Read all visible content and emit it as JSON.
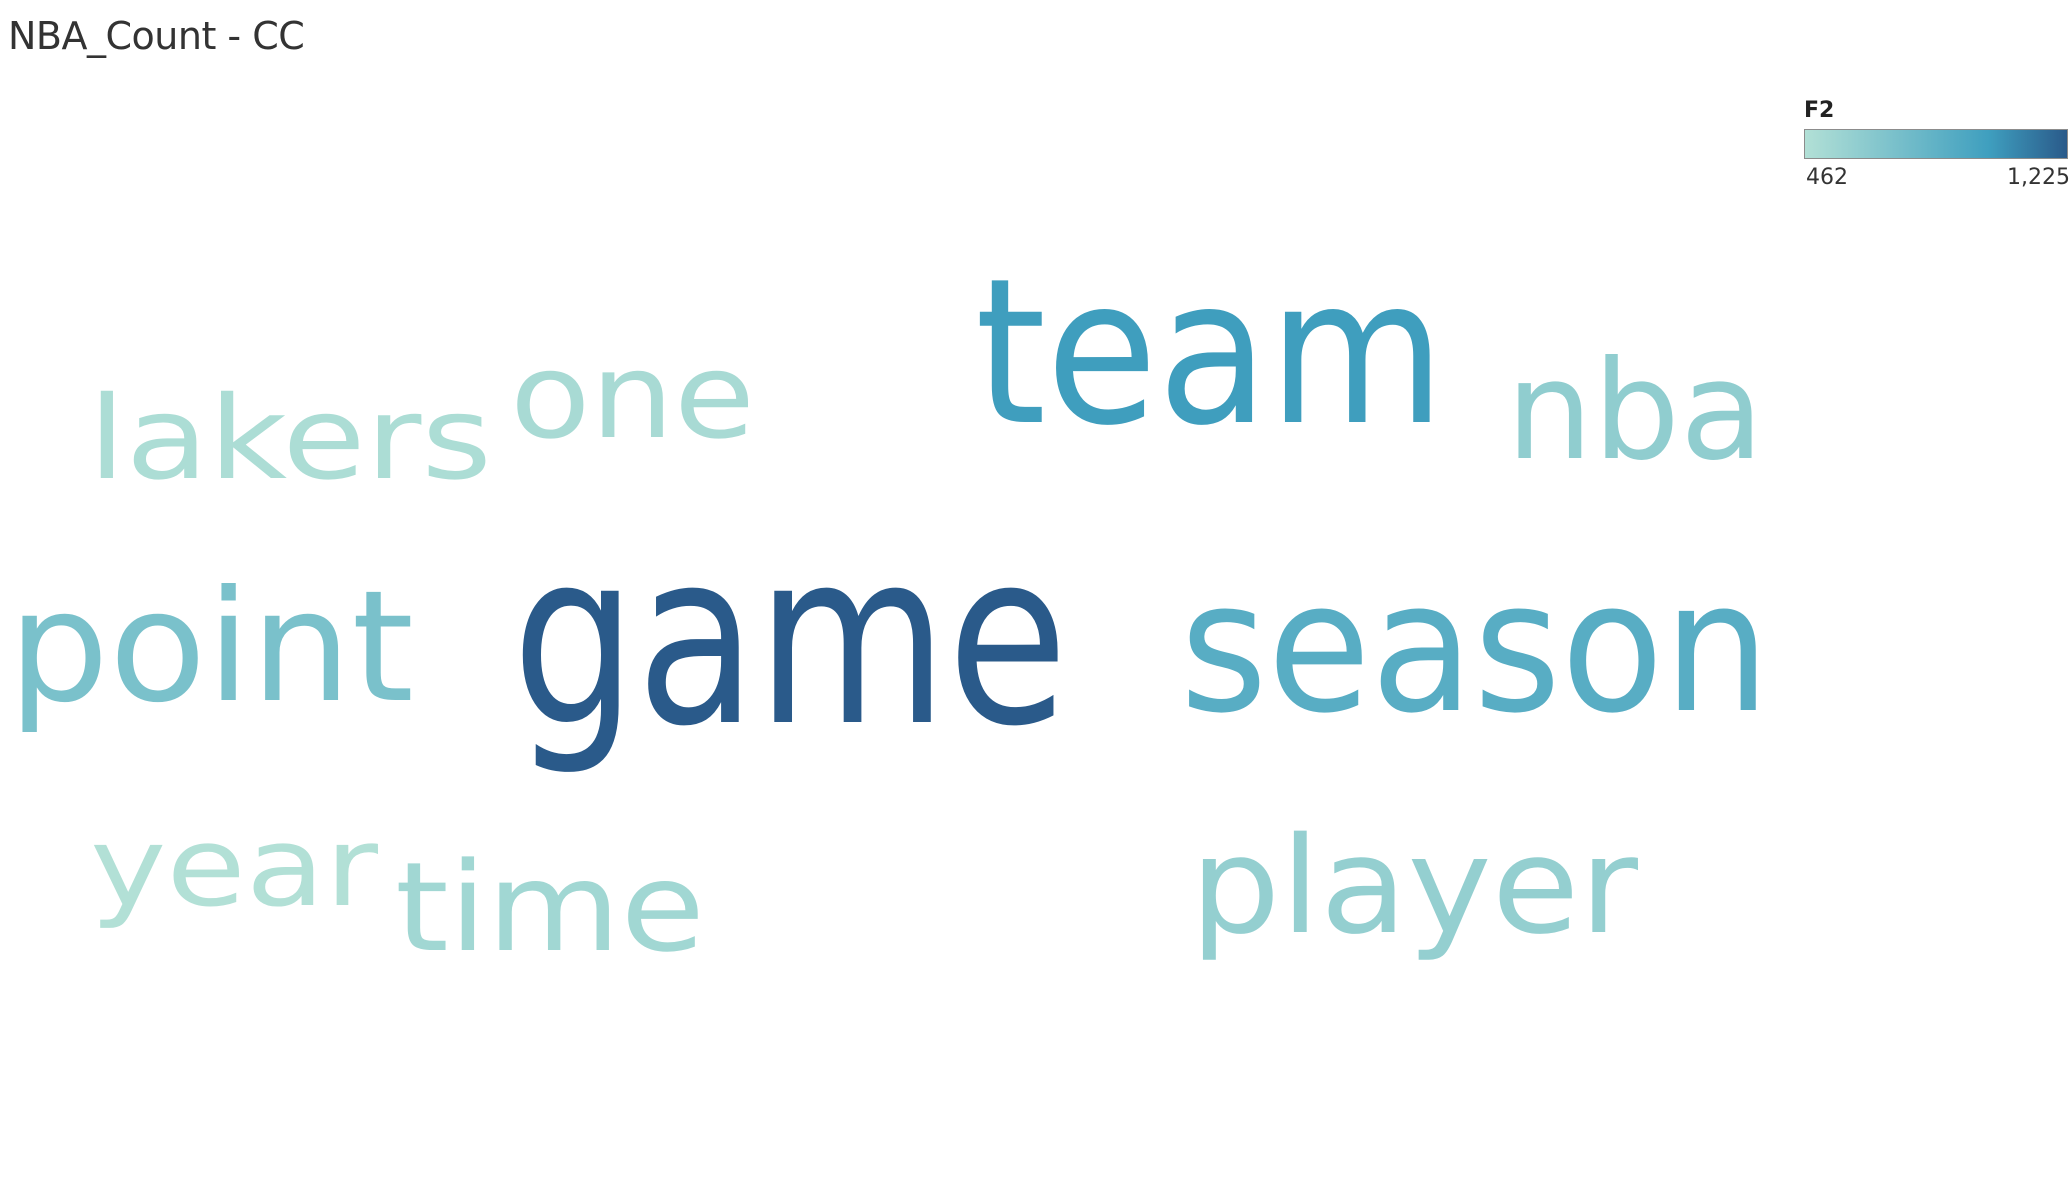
{
  "title": "NBA_Count - CC",
  "legend": {
    "title": "F2",
    "min_label": "462",
    "max_label": "1,225",
    "color_low": "#b2e0d6",
    "color_mid": "#3f9fbf",
    "color_high": "#2a5a8a"
  },
  "chart_data": {
    "type": "word-cloud",
    "measure": "F2",
    "range": [
      462,
      1225
    ],
    "words": [
      {
        "text": "game",
        "value": 1225
      },
      {
        "text": "team",
        "value": 1000
      },
      {
        "text": "season",
        "value": 880
      },
      {
        "text": "point",
        "value": 720
      },
      {
        "text": "nba",
        "value": 620
      },
      {
        "text": "player",
        "value": 600
      },
      {
        "text": "time",
        "value": 540
      },
      {
        "text": "one",
        "value": 510
      },
      {
        "text": "lakers",
        "value": 490
      },
      {
        "text": "year",
        "value": 462
      }
    ]
  }
}
